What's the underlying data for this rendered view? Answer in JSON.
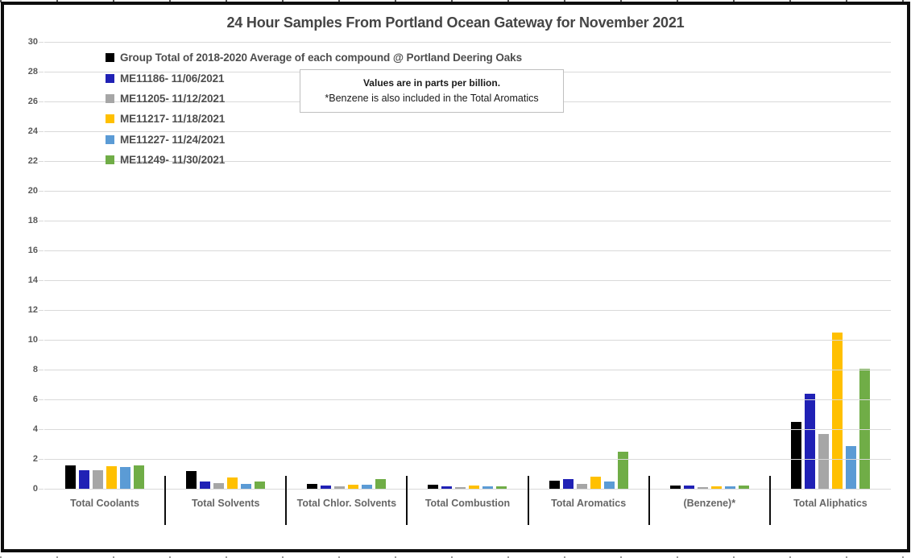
{
  "chart_data": {
    "type": "bar",
    "title": "24 Hour Samples From Portland Ocean Gateway for November 2021",
    "annotation": {
      "line1": "Values are in parts per billion.",
      "line2": "*Benzene is also included in the Total Aromatics"
    },
    "value_unit": "parts per billion",
    "xlabel": "",
    "ylabel": "",
    "ylim": [
      0,
      30
    ],
    "ytick_step": 2,
    "yticks": [
      0,
      2,
      4,
      6,
      8,
      10,
      12,
      14,
      16,
      18,
      20,
      22,
      24,
      26,
      28,
      30
    ],
    "grid": true,
    "legend_position": "top-left",
    "categories": [
      "Total Coolants",
      "Total Solvents",
      "Total Chlor. Solvents",
      "Total Combustion",
      "Total Aromatics",
      "(Benzene)*",
      "Total Aliphatics"
    ],
    "series": [
      {
        "name": "Group Total of 2018-2020 Average of each compound @ Portland Deering Oaks",
        "color": "#000000",
        "values": [
          1.55,
          1.2,
          0.35,
          0.25,
          0.55,
          0.2,
          4.5
        ]
      },
      {
        "name": "ME11186- 11/06/2021",
        "color": "#2021B5",
        "values": [
          1.25,
          0.5,
          0.2,
          0.15,
          0.65,
          0.2,
          6.4
        ]
      },
      {
        "name": "ME11205- 11/12/2021",
        "color": "#A6A6A6",
        "values": [
          1.25,
          0.4,
          0.15,
          0.1,
          0.35,
          0.1,
          3.65
        ]
      },
      {
        "name": "ME11217- 11/18/2021",
        "color": "#FFC000",
        "values": [
          1.5,
          0.75,
          0.25,
          0.2,
          0.8,
          0.15,
          10.5
        ]
      },
      {
        "name": "ME11227- 11/24/2021",
        "color": "#5B9BD5",
        "values": [
          1.45,
          0.3,
          0.25,
          0.15,
          0.5,
          0.15,
          2.85
        ]
      },
      {
        "name": "ME11249- 11/30/2021",
        "color": "#70AD47",
        "values": [
          1.55,
          0.5,
          0.65,
          0.15,
          2.5,
          0.2,
          8.05
        ]
      }
    ]
  }
}
